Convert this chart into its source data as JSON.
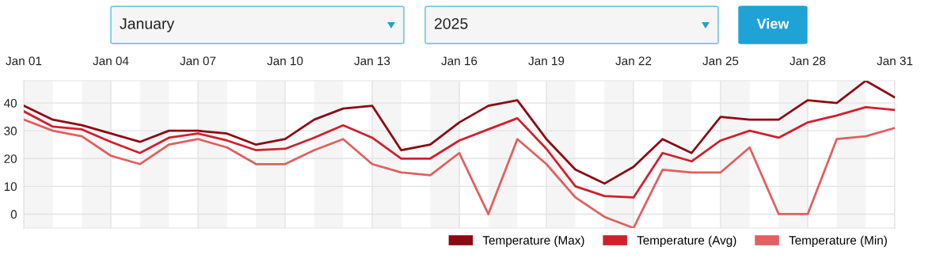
{
  "chart_data": {
    "type": "line",
    "annotations": [
      "January",
      "2025",
      "View"
    ],
    "x": [
      "2025-01-01",
      "2025-01-02",
      "2025-01-03",
      "2025-01-04",
      "2025-01-05",
      "2025-01-06",
      "2025-01-07",
      "2025-01-08",
      "2025-01-09",
      "2025-01-10",
      "2025-01-11",
      "2025-01-12",
      "2025-01-13",
      "2025-01-14",
      "2025-01-15",
      "2025-01-16",
      "2025-01-17",
      "2025-01-18",
      "2025-01-19",
      "2025-01-20",
      "2025-01-21",
      "2025-01-22",
      "2025-01-23",
      "2025-01-24",
      "2025-01-25",
      "2025-01-26",
      "2025-01-27",
      "2025-01-28",
      "2025-01-29",
      "2025-01-30",
      "2025-01-31"
    ],
    "series": [
      {
        "name": "Temperature (Max)",
        "color": "#8b0a14",
        "values": [
          39,
          34,
          32,
          29,
          26,
          30,
          30,
          29,
          25,
          27,
          34,
          38,
          39,
          23,
          25,
          33,
          39,
          41,
          27,
          16,
          11,
          17,
          27,
          22,
          35,
          34,
          34,
          41,
          40,
          48,
          42
        ]
      },
      {
        "name": "Temperature (Avg)",
        "color": "#d0202e",
        "values": [
          37,
          31.5,
          30.5,
          26,
          22,
          27.5,
          29,
          26.5,
          23,
          23.5,
          27.5,
          32,
          27.5,
          20,
          20,
          26.5,
          30.5,
          34.5,
          23.5,
          10,
          6.5,
          6,
          22,
          19,
          26.5,
          30,
          27.5,
          33,
          35.5,
          38.5,
          37.5
        ]
      },
      {
        "name": "Temperature (Min)",
        "color": "#e06060",
        "values": [
          34,
          30,
          28,
          21,
          18,
          25,
          27,
          24,
          18,
          18,
          23,
          27,
          18,
          15,
          14,
          22,
          0,
          27,
          18,
          6,
          -1,
          -5,
          16,
          15,
          15,
          24,
          0,
          0,
          27,
          28,
          31
        ]
      }
    ],
    "xlim": [
      "2025-01-01",
      "2025-01-31"
    ],
    "xticks": [
      {
        "value": "2025-01-01",
        "label": "Jan 01"
      },
      {
        "value": "2025-01-04",
        "label": "Jan 04"
      },
      {
        "value": "2025-01-07",
        "label": "Jan 07"
      },
      {
        "value": "2025-01-10",
        "label": "Jan 10"
      },
      {
        "value": "2025-01-13",
        "label": "Jan 13"
      },
      {
        "value": "2025-01-16",
        "label": "Jan 16"
      },
      {
        "value": "2025-01-19",
        "label": "Jan 19"
      },
      {
        "value": "2025-01-22",
        "label": "Jan 22"
      },
      {
        "value": "2025-01-25",
        "label": "Jan 25"
      },
      {
        "value": "2025-01-28",
        "label": "Jan 28"
      },
      {
        "value": "2025-01-31",
        "label": "Jan 31"
      }
    ],
    "ylim": [
      -5,
      48
    ],
    "yticks": [
      0,
      10,
      20,
      30,
      40
    ],
    "bands": [
      {
        "axis": "x",
        "from": "2025-01-01",
        "to": "2025-01-02",
        "color": "#f5f5f5"
      },
      {
        "axis": "x",
        "from": "2025-01-03",
        "to": "2025-01-04",
        "color": "#f5f5f5"
      },
      {
        "axis": "x",
        "from": "2025-01-05",
        "to": "2025-01-06",
        "color": "#f5f5f5"
      },
      {
        "axis": "x",
        "from": "2025-01-07",
        "to": "2025-01-08",
        "color": "#f5f5f5"
      },
      {
        "axis": "x",
        "from": "2025-01-09",
        "to": "2025-01-10",
        "color": "#f5f5f5"
      },
      {
        "axis": "x",
        "from": "2025-01-11",
        "to": "2025-01-12",
        "color": "#f5f5f5"
      },
      {
        "axis": "x",
        "from": "2025-01-13",
        "to": "2025-01-14",
        "color": "#f5f5f5"
      },
      {
        "axis": "x",
        "from": "2025-01-15",
        "to": "2025-01-16",
        "color": "#f5f5f5"
      },
      {
        "axis": "x",
        "from": "2025-01-17",
        "to": "2025-01-18",
        "color": "#f5f5f5"
      },
      {
        "axis": "x",
        "from": "2025-01-19",
        "to": "2025-01-20",
        "color": "#f5f5f5"
      },
      {
        "axis": "x",
        "from": "2025-01-21",
        "to": "2025-01-22",
        "color": "#f5f5f5"
      },
      {
        "axis": "x",
        "from": "2025-01-23",
        "to": "2025-01-24",
        "color": "#f5f5f5"
      },
      {
        "axis": "x",
        "from": "2025-01-25",
        "to": "2025-01-26",
        "color": "#f5f5f5"
      },
      {
        "axis": "x",
        "from": "2025-01-27",
        "to": "2025-01-28",
        "color": "#f5f5f5"
      },
      {
        "axis": "x",
        "from": "2025-01-29",
        "to": "2025-01-30",
        "color": "#f5f5f5"
      }
    ],
    "grid": true,
    "legend": "bottom right",
    "marker": "none",
    "line_style": "solid"
  }
}
